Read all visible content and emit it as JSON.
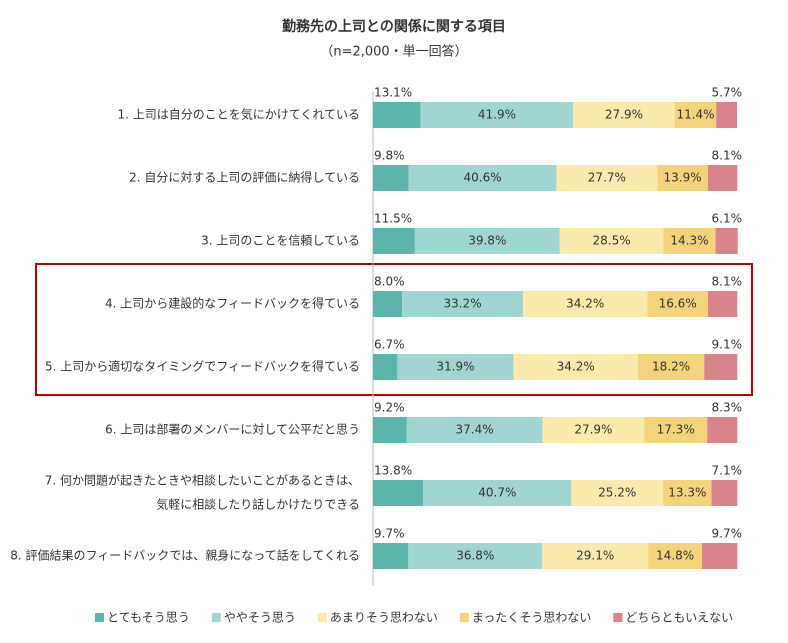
{
  "chart_data": {
    "type": "stacked-bar-horizontal",
    "title": "勤務先の上司との関係に関する項目",
    "subtitle": "（n=2,000・単一回答）",
    "categories": [
      "1. 上司は自分のことを気にかけてくれている",
      "2. 自分に対する上司の評価に納得している",
      "3. 上司のことを信頼している",
      "4. 上司から建設的なフィードバックを得ている",
      "5. 上司から適切なタイミングでフィードバックを得ている",
      "6. 上司は部署のメンバーに対して公平だと思う",
      [
        "7. 何か問題が起きたときや相談したいことがあるときは、",
        "気軽に相談したり話しかけたりできる"
      ],
      "8. 評価結果のフィードバックでは、親身になって話をしてくれる"
    ],
    "xlim": [
      0,
      100
    ],
    "series": [
      {
        "name": "とてもそう思う",
        "color": "#5bb5aa",
        "values": [
          13.1,
          9.8,
          11.5,
          8.0,
          6.7,
          9.2,
          13.8,
          9.7
        ],
        "value_labels": [
          "13.1%",
          "9.8%",
          "11.5%",
          "8.0%",
          "6.7%",
          "9.2%",
          "13.8%",
          "9.7%"
        ]
      },
      {
        "name": "ややそう思う",
        "color": "#9fd6d1",
        "values": [
          41.9,
          40.6,
          39.8,
          33.2,
          31.9,
          37.4,
          40.7,
          36.8
        ],
        "value_labels": [
          "41.9%",
          "40.6%",
          "39.8%",
          "33.2%",
          "31.9%",
          "37.4%",
          "40.7%",
          "36.8%"
        ]
      },
      {
        "name": "あまりそう思わない",
        "color": "#fce9ac",
        "values": [
          27.9,
          27.7,
          28.5,
          34.2,
          34.2,
          27.9,
          25.2,
          29.1
        ],
        "value_labels": [
          "27.9%",
          "27.7%",
          "28.5%",
          "34.2%",
          "34.2%",
          "27.9%",
          "25.2%",
          "29.1%"
        ]
      },
      {
        "name": "まったくそう思わない",
        "color": "#f4d37a",
        "values": [
          11.4,
          13.9,
          14.3,
          16.6,
          18.2,
          17.3,
          13.3,
          14.8
        ],
        "value_labels": [
          "11.4%",
          "13.9%",
          "14.3%",
          "16.6%",
          "18.2%",
          "17.3%",
          "13.3%",
          "14.8%"
        ]
      },
      {
        "name": "どちらともいえない",
        "color": "#d9838a",
        "values": [
          5.7,
          8.1,
          6.1,
          8.1,
          9.1,
          8.3,
          7.1,
          9.7
        ],
        "value_labels": [
          "5.7%",
          "8.1%",
          "6.1%",
          "8.1%",
          "9.1%",
          "8.3%",
          "7.1%",
          "9.7%"
        ]
      }
    ]
  }
}
